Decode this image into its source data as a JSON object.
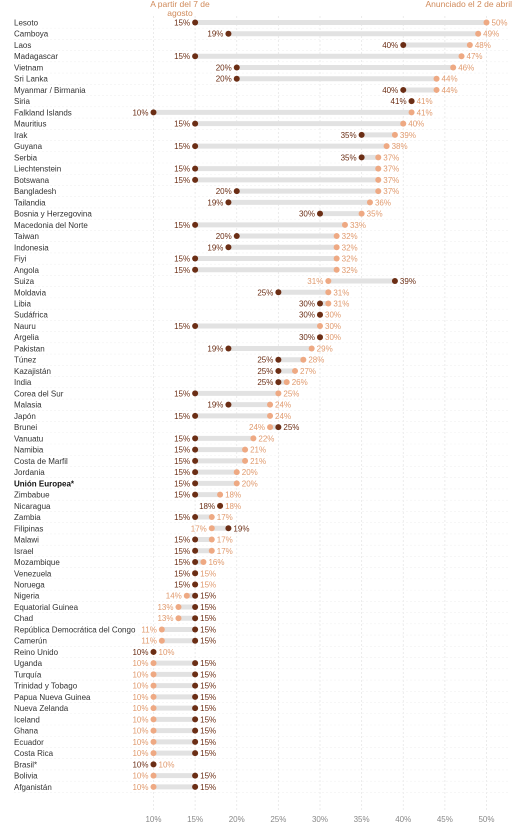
{
  "legend": {
    "before_label": "A partir del 7 de agosto",
    "after_label": "Anunciado el 2 de abril"
  },
  "colors": {
    "before": "#6b2e15",
    "after": "#eea983",
    "bar": "#e2e2e2",
    "before_text": "#6b2e15",
    "after_text": "#e09a6e"
  },
  "chart_data": {
    "type": "dumbbell",
    "title": "",
    "xlabel": "",
    "ylabel": "",
    "x_unit": "%",
    "xlim": [
      10,
      50
    ],
    "xticks": [
      10,
      15,
      20,
      25,
      30,
      35,
      40,
      45,
      50
    ],
    "tick_labels": [
      "10%",
      "15%",
      "20%",
      "25%",
      "30%",
      "35%",
      "40%",
      "45%",
      "50%"
    ],
    "series": [
      {
        "name": "A partir del 7 de agosto",
        "key": "before"
      },
      {
        "name": "Anunciado el 2 de abril",
        "key": "after"
      }
    ],
    "rows": [
      {
        "country": "Lesoto",
        "before": 15,
        "after": 50
      },
      {
        "country": "Camboya",
        "before": 19,
        "after": 49
      },
      {
        "country": "Laos",
        "before": 40,
        "after": 48
      },
      {
        "country": "Madagascar",
        "before": 15,
        "after": 47
      },
      {
        "country": "Vietnam",
        "before": 20,
        "after": 46
      },
      {
        "country": "Sri Lanka",
        "before": 20,
        "after": 44
      },
      {
        "country": "Myanmar / Birmania",
        "before": 40,
        "after": 44
      },
      {
        "country": "Siria",
        "before": 41,
        "after": 41
      },
      {
        "country": "Falkland Islands",
        "before": 10,
        "after": 41
      },
      {
        "country": "Mauritius",
        "before": 15,
        "after": 40
      },
      {
        "country": "Irak",
        "before": 35,
        "after": 39
      },
      {
        "country": "Guyana",
        "before": 15,
        "after": 38
      },
      {
        "country": "Serbia",
        "before": 35,
        "after": 37
      },
      {
        "country": "Liechtenstein",
        "before": 15,
        "after": 37
      },
      {
        "country": "Botswana",
        "before": 15,
        "after": 37
      },
      {
        "country": "Bangladesh",
        "before": 20,
        "after": 37
      },
      {
        "country": "Tailandia",
        "before": 19,
        "after": 36
      },
      {
        "country": "Bosnia y Herzegovina",
        "before": 30,
        "after": 35
      },
      {
        "country": "Macedonia del Norte",
        "before": 15,
        "after": 33
      },
      {
        "country": "Taiwan",
        "before": 20,
        "after": 32
      },
      {
        "country": "Indonesia",
        "before": 19,
        "after": 32
      },
      {
        "country": "Fiyi",
        "before": 15,
        "after": 32
      },
      {
        "country": "Angola",
        "before": 15,
        "after": 32
      },
      {
        "country": "Suiza",
        "before": 39,
        "after": 31
      },
      {
        "country": "Moldavia",
        "before": 25,
        "after": 31
      },
      {
        "country": "Libia",
        "before": 30,
        "after": 31
      },
      {
        "country": "Sudáfrica",
        "before": 30,
        "after": 30
      },
      {
        "country": "Nauru",
        "before": 15,
        "after": 30
      },
      {
        "country": "Argelia",
        "before": 30,
        "after": 30
      },
      {
        "country": "Pakistan",
        "before": 19,
        "after": 29
      },
      {
        "country": "Túnez",
        "before": 25,
        "after": 28
      },
      {
        "country": "Kazajistán",
        "before": 25,
        "after": 27
      },
      {
        "country": "India",
        "before": 25,
        "after": 26
      },
      {
        "country": "Corea del Sur",
        "before": 15,
        "after": 25
      },
      {
        "country": "Malasia",
        "before": 19,
        "after": 24
      },
      {
        "country": "Japón",
        "before": 15,
        "after": 24
      },
      {
        "country": "Brunei",
        "before": 25,
        "after": 24
      },
      {
        "country": "Vanuatu",
        "before": 15,
        "after": 22
      },
      {
        "country": "Namibia",
        "before": 15,
        "after": 21
      },
      {
        "country": "Costa de Marfil",
        "before": 15,
        "after": 21
      },
      {
        "country": "Jordania",
        "before": 15,
        "after": 20
      },
      {
        "country": "Unión Europea*",
        "before": 15,
        "after": 20,
        "bold": true
      },
      {
        "country": "Zimbabue",
        "before": 15,
        "after": 18
      },
      {
        "country": "Nicaragua",
        "before": 18,
        "after": 18
      },
      {
        "country": "Zambia",
        "before": 15,
        "after": 17
      },
      {
        "country": "Filipinas",
        "before": 19,
        "after": 17
      },
      {
        "country": "Malawi",
        "before": 15,
        "after": 17
      },
      {
        "country": "Israel",
        "before": 15,
        "after": 17
      },
      {
        "country": "Mozambique",
        "before": 15,
        "after": 16
      },
      {
        "country": "Venezuela",
        "before": 15,
        "after": 15
      },
      {
        "country": "Noruega",
        "before": 15,
        "after": 15
      },
      {
        "country": "Nigeria",
        "before": 15,
        "after": 14
      },
      {
        "country": "Equatorial Guinea",
        "before": 15,
        "after": 13
      },
      {
        "country": "Chad",
        "before": 15,
        "after": 13
      },
      {
        "country": "República Democrática del Congo",
        "before": 15,
        "after": 11
      },
      {
        "country": "Camerún",
        "before": 15,
        "after": 11
      },
      {
        "country": "Reino Unido",
        "before": 10,
        "after": 10
      },
      {
        "country": "Uganda",
        "before": 15,
        "after": 10
      },
      {
        "country": "Turquía",
        "before": 15,
        "after": 10
      },
      {
        "country": "Trinidad y Tobago",
        "before": 15,
        "after": 10
      },
      {
        "country": "Papua Nueva Guinea",
        "before": 15,
        "after": 10
      },
      {
        "country": "Nueva Zelanda",
        "before": 15,
        "after": 10
      },
      {
        "country": "Iceland",
        "before": 15,
        "after": 10
      },
      {
        "country": "Ghana",
        "before": 15,
        "after": 10
      },
      {
        "country": "Ecuador",
        "before": 15,
        "after": 10
      },
      {
        "country": "Costa Rica",
        "before": 15,
        "after": 10
      },
      {
        "country": "Brasil*",
        "before": 10,
        "after": 10
      },
      {
        "country": "Bolivia",
        "before": 15,
        "after": 10
      },
      {
        "country": "Afganistán",
        "before": 15,
        "after": 10
      }
    ]
  }
}
